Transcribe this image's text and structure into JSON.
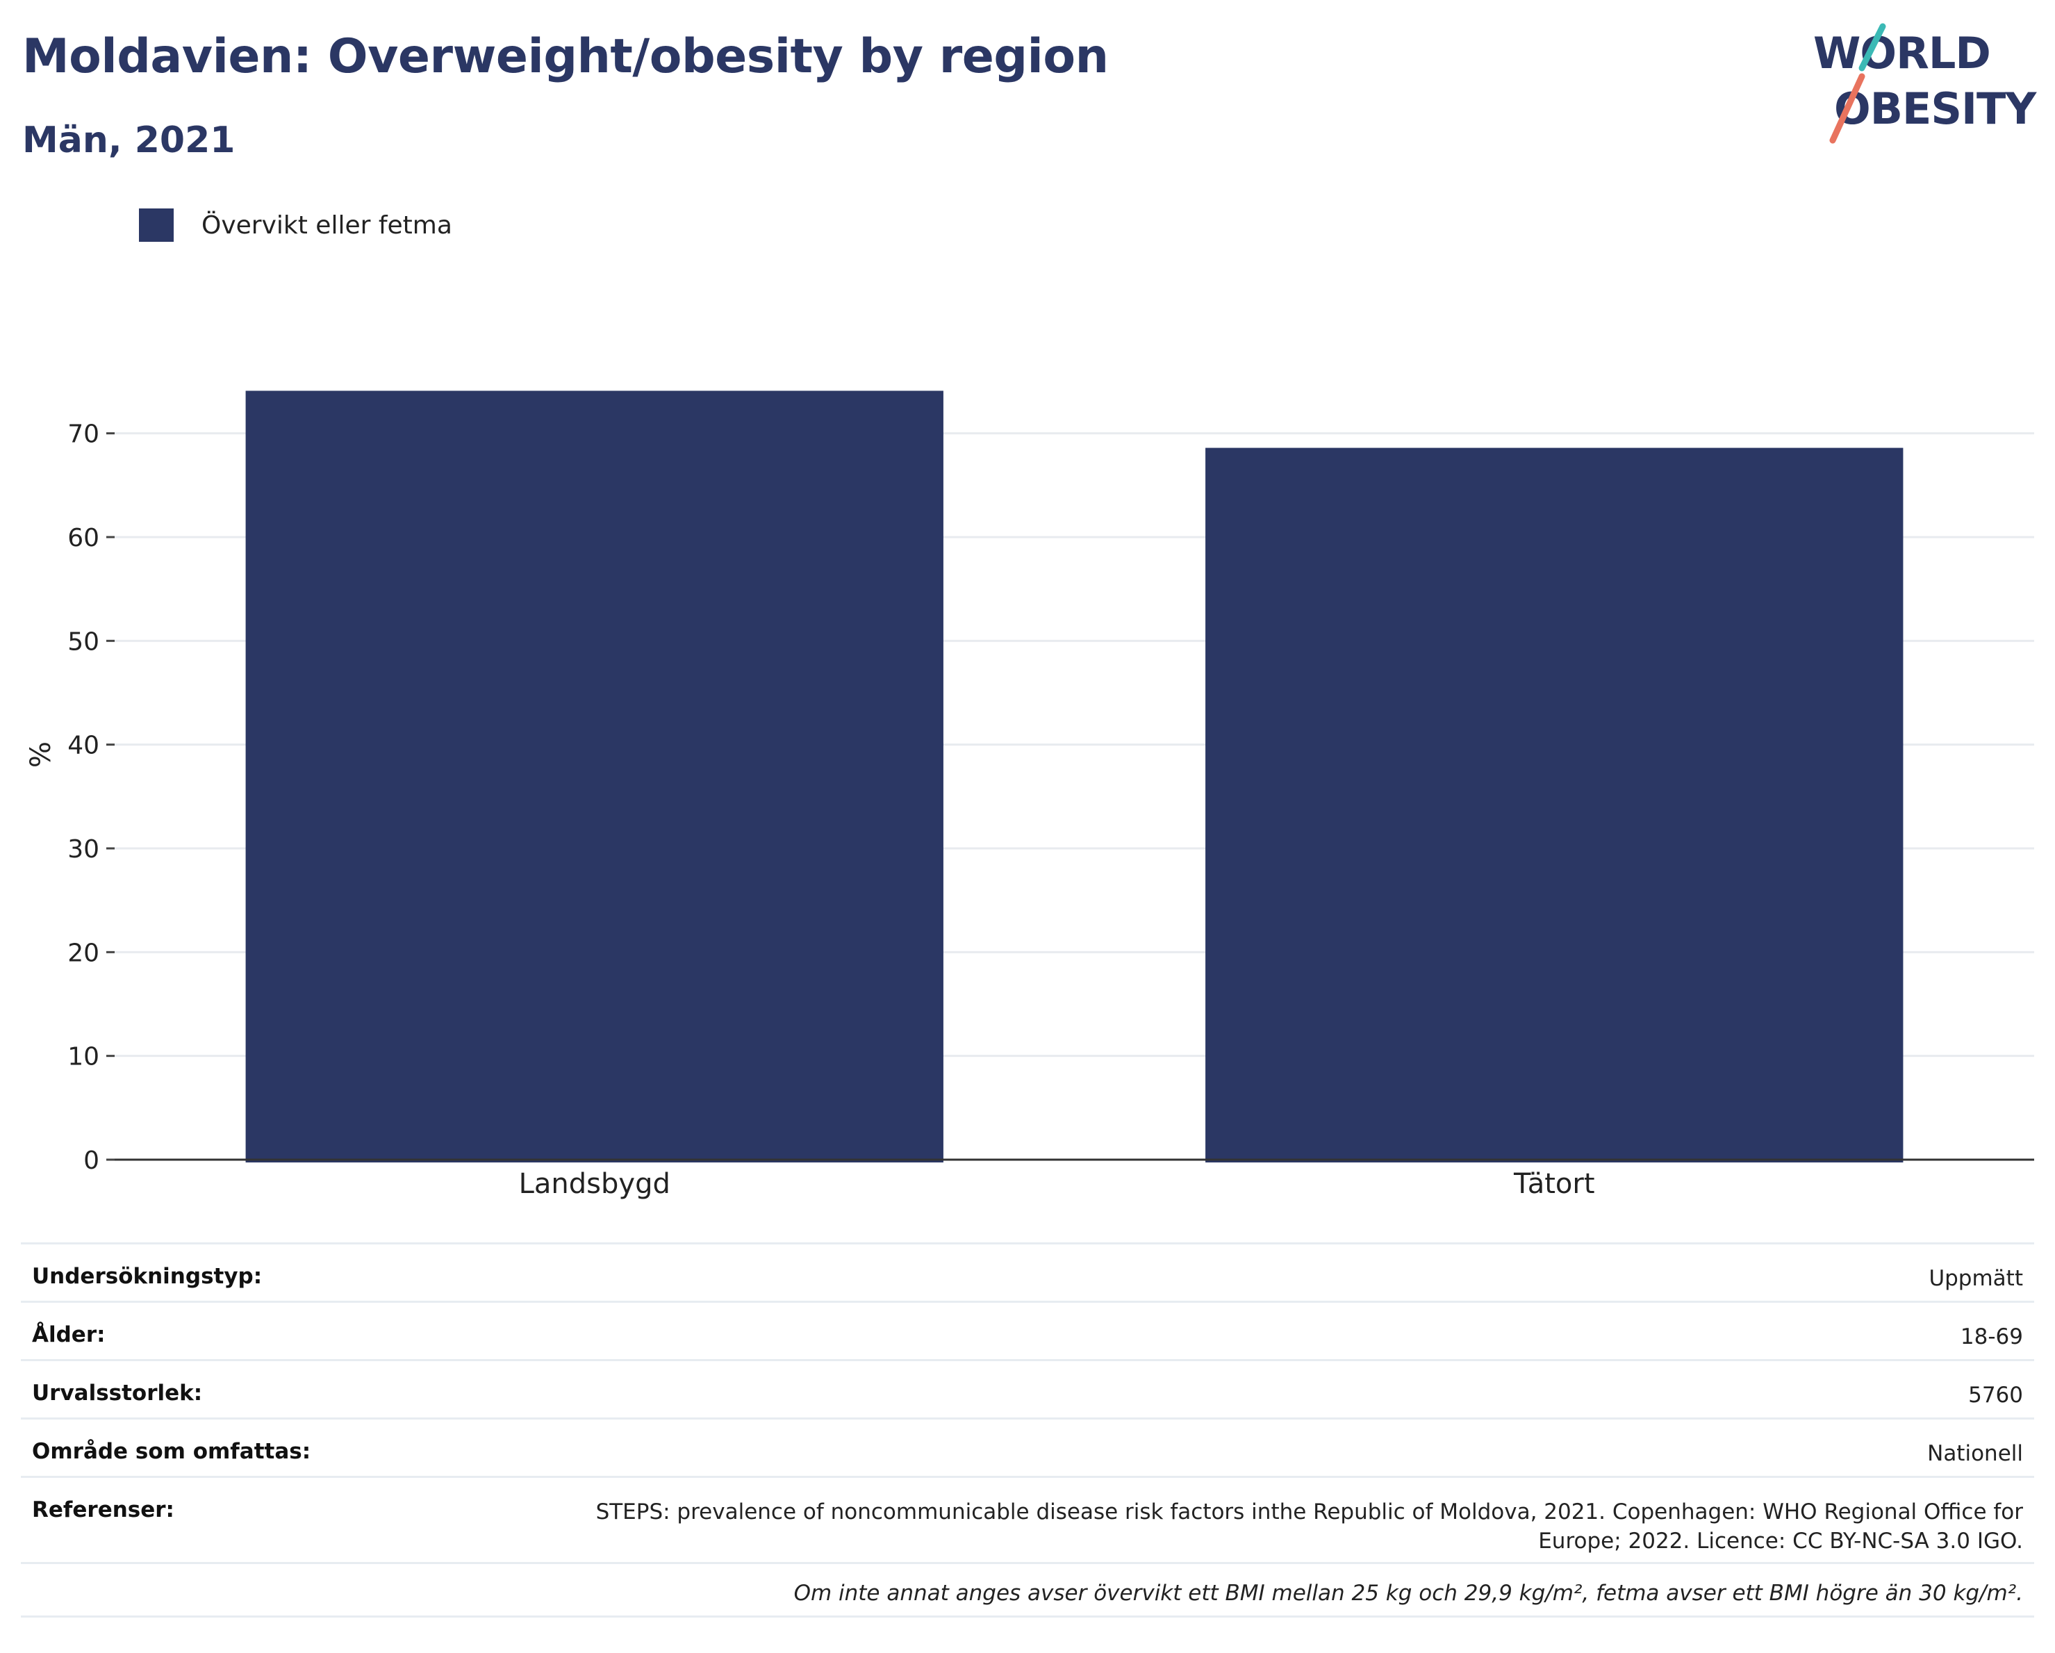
{
  "header": {
    "title": "Moldavien: Overweight/obesity by region",
    "subtitle": "Män, 2021"
  },
  "logo": {
    "line1": "WORLD",
    "line2": "OBESITY"
  },
  "legend": {
    "label": "Övervikt eller fetma"
  },
  "chart_data": {
    "type": "bar",
    "categories": [
      "Landsbygd",
      "Tätort"
    ],
    "series": [
      {
        "name": "Övervikt eller fetma",
        "values": [
          74.1,
          68.6
        ],
        "color": "#2b3764"
      }
    ],
    "ylabel": "%",
    "ylim": [
      0,
      75.4
    ],
    "yticks": [
      0,
      10,
      20,
      30,
      40,
      50,
      60,
      70
    ],
    "grid": true,
    "legend_position": "top-left"
  },
  "info": {
    "rows": [
      {
        "key": "Undersökningstyp:",
        "value": "Uppmätt"
      },
      {
        "key": "Ålder:",
        "value": "18-69"
      },
      {
        "key": "Urvalsstorlek:",
        "value": "5760"
      },
      {
        "key": "Område som omfattas:",
        "value": "Nationell"
      }
    ],
    "references_key": "Referenser:",
    "references_line1": "STEPS: prevalence of noncommunicable disease risk factors inthe Republic of Moldova, 2021. Copenhagen: WHO Regional Office for",
    "references_line2": "Europe; 2022. Licence: CC BY-NC-SA 3.0 IGO.",
    "note": "Om inte annat anges avser övervikt ett BMI mellan 25 kg och 29,9 kg/m², fetma avser ett BMI högre än 30 kg/m²."
  }
}
